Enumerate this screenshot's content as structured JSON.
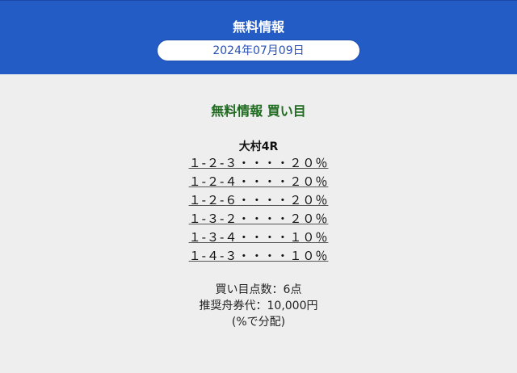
{
  "header": {
    "title": "無料情報",
    "date": "2024年07月09日"
  },
  "main": {
    "section_title": "無料情報 買い目",
    "race": "大村4R",
    "picks": [
      "１-２-３・・・・２０％",
      "１-２-４・・・・２０％",
      "１-２-６・・・・２０％",
      "１-３-２・・・・２０％",
      "１-３-４・・・・１０％",
      "１-４-３・・・・１０％"
    ],
    "summary": {
      "count": "買い目点数：6点",
      "budget": "推奨舟券代：10,000円",
      "note": "(%で分配)"
    }
  }
}
